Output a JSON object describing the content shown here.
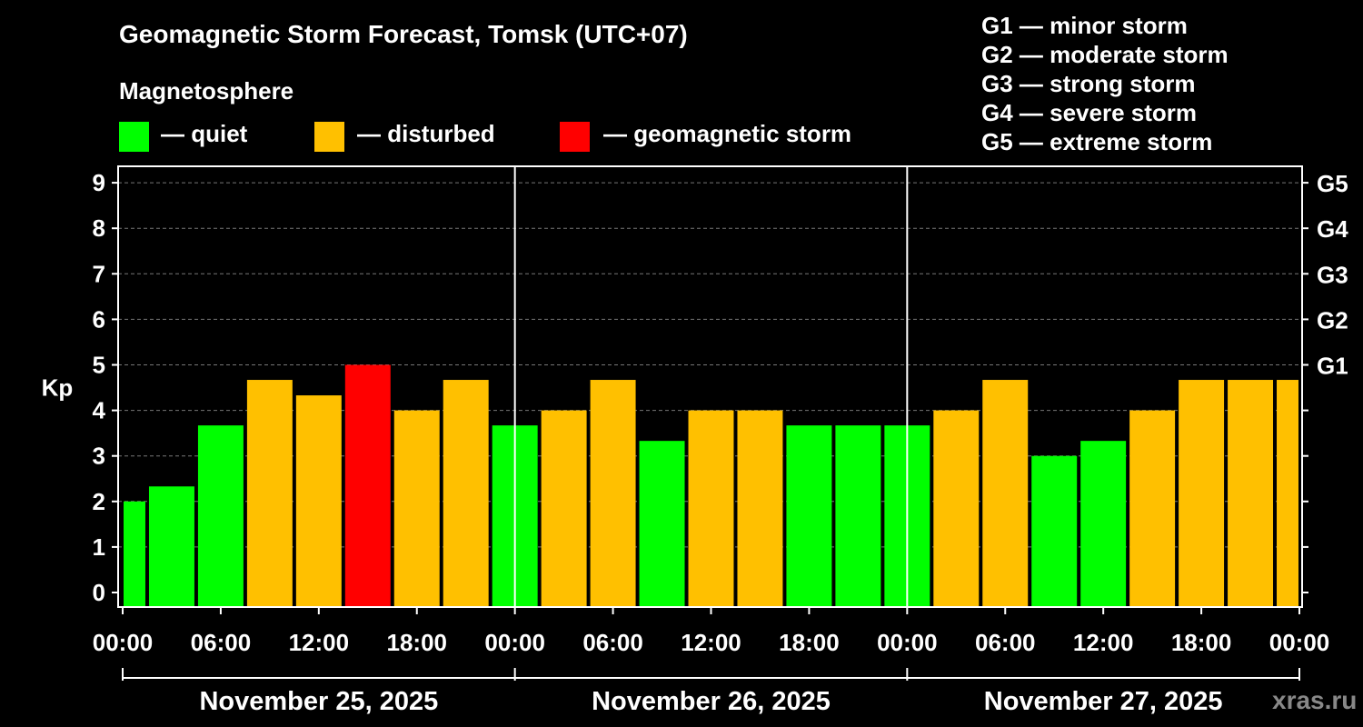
{
  "title": "Geomagnetic Storm Forecast, Tomsk (UTC+07)",
  "legend": {
    "heading": "Magnetosphere",
    "items": [
      {
        "label": "— quiet",
        "color": "#00ff00"
      },
      {
        "label": "— disturbed",
        "color": "#ffc000"
      },
      {
        "label": "— geomagnetic storm",
        "color": "#ff0000"
      }
    ]
  },
  "storm_scale": [
    "G1 — minor storm",
    "G2 — moderate storm",
    "G3 — strong storm",
    "G4 — severe storm",
    "G5 — extreme storm"
  ],
  "watermark": "xras.ru",
  "chart_data": {
    "type": "bar",
    "ylabel": "Kp",
    "ylim": [
      0,
      9
    ],
    "yticks": [
      0,
      1,
      2,
      3,
      4,
      5,
      6,
      7,
      8,
      9
    ],
    "right_axis_ticks": [
      {
        "value": 5,
        "label": "G1"
      },
      {
        "value": 6,
        "label": "G2"
      },
      {
        "value": 7,
        "label": "G3"
      },
      {
        "value": 8,
        "label": "G4"
      },
      {
        "value": 9,
        "label": "G5"
      }
    ],
    "grid": true,
    "x_tick_labels": [
      "00:00",
      "06:00",
      "12:00",
      "18:00",
      "00:00",
      "06:00",
      "12:00",
      "18:00",
      "00:00",
      "06:00",
      "12:00",
      "18:00",
      "00:00"
    ],
    "days": [
      "November 25, 2025",
      "November 26, 2025",
      "November 27, 2025"
    ],
    "interval_hours": 3,
    "values": [
      2.0,
      2.33,
      3.67,
      4.67,
      4.33,
      5.0,
      4.0,
      4.67,
      3.67,
      4.0,
      4.67,
      3.33,
      4.0,
      4.0,
      3.67,
      3.67,
      3.67,
      4.0,
      4.67,
      3.0,
      3.33,
      4.0,
      4.67,
      4.67,
      4.67
    ],
    "colors": [
      "#00ff00",
      "#00ff00",
      "#00ff00",
      "#ffc000",
      "#ffc000",
      "#ff0000",
      "#ffc000",
      "#ffc000",
      "#00ff00",
      "#ffc000",
      "#ffc000",
      "#00ff00",
      "#ffc000",
      "#ffc000",
      "#00ff00",
      "#00ff00",
      "#00ff00",
      "#ffc000",
      "#ffc000",
      "#00ff00",
      "#00ff00",
      "#ffc000",
      "#ffc000",
      "#ffc000",
      "#ffc000"
    ]
  }
}
